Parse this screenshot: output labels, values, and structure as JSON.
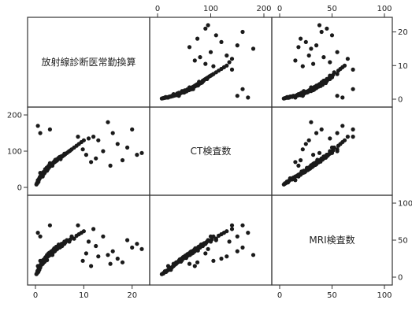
{
  "chart_data": {
    "type": "scatter",
    "subtype": "scatterplot-matrix",
    "variables": [
      {
        "id": "rad",
        "label": "放射線診断医常勤換算",
        "range": [
          0,
          22
        ],
        "ticks": [
          0,
          10,
          20
        ]
      },
      {
        "id": "ct",
        "label": "CT検査数",
        "range": [
          0,
          200
        ],
        "ticks": [
          0,
          100,
          200
        ]
      },
      {
        "id": "mri",
        "label": "MRI検査数",
        "range": [
          0,
          100
        ],
        "ticks": [
          0,
          50,
          100
        ]
      }
    ],
    "grid": false,
    "legend": "none",
    "point_color": "#1a1a1a",
    "observations": [
      {
        "rad": 0.5,
        "ct": 20,
        "mri": 15
      },
      {
        "rad": 1.2,
        "ct": 35,
        "mri": 20
      },
      {
        "rad": 2.0,
        "ct": 45,
        "mri": 25
      },
      {
        "rad": 0.8,
        "ct": 25,
        "mri": 10
      },
      {
        "rad": 3.5,
        "ct": 60,
        "mri": 30
      },
      {
        "rad": 1.5,
        "ct": 30,
        "mri": 18
      },
      {
        "rad": 4.0,
        "ct": 70,
        "mri": 35
      },
      {
        "rad": 2.5,
        "ct": 55,
        "mri": 28
      },
      {
        "rad": 0.3,
        "ct": 10,
        "mri": 5
      },
      {
        "rad": 5.0,
        "ct": 80,
        "mri": 40
      },
      {
        "rad": 1.0,
        "ct": 40,
        "mri": 22
      },
      {
        "rad": 6.0,
        "ct": 90,
        "mri": 45
      },
      {
        "rad": 2.2,
        "ct": 50,
        "mri": 26
      },
      {
        "rad": 3.0,
        "ct": 65,
        "mri": 32
      },
      {
        "rad": 0.6,
        "ct": 15,
        "mri": 8
      },
      {
        "rad": 1.8,
        "ct": 42,
        "mri": 24
      },
      {
        "rad": 4.5,
        "ct": 75,
        "mri": 38
      },
      {
        "rad": 7.0,
        "ct": 100,
        "mri": 48
      },
      {
        "rad": 2.8,
        "ct": 58,
        "mri": 30
      },
      {
        "rad": 1.3,
        "ct": 33,
        "mri": 17
      },
      {
        "rad": 3.2,
        "ct": 62,
        "mri": 34
      },
      {
        "rad": 0.9,
        "ct": 28,
        "mri": 14
      },
      {
        "rad": 5.5,
        "ct": 85,
        "mri": 42
      },
      {
        "rad": 2.1,
        "ct": 48,
        "mri": 27
      },
      {
        "rad": 8.0,
        "ct": 110,
        "mri": 52
      },
      {
        "rad": 1.7,
        "ct": 38,
        "mri": 20
      },
      {
        "rad": 3.8,
        "ct": 68,
        "mri": 36
      },
      {
        "rad": 0.4,
        "ct": 12,
        "mri": 6
      },
      {
        "rad": 2.6,
        "ct": 52,
        "mri": 29
      },
      {
        "rad": 4.2,
        "ct": 72,
        "mri": 37
      },
      {
        "rad": 1.1,
        "ct": 31,
        "mri": 16
      },
      {
        "rad": 6.5,
        "ct": 95,
        "mri": 50
      },
      {
        "rad": 3.6,
        "ct": 66,
        "mri": 33
      },
      {
        "rad": 0.7,
        "ct": 22,
        "mri": 12
      },
      {
        "rad": 2.4,
        "ct": 46,
        "mri": 23
      },
      {
        "rad": 1.9,
        "ct": 44,
        "mri": 21
      },
      {
        "rad": 5.2,
        "ct": 78,
        "mri": 41
      },
      {
        "rad": 9.0,
        "ct": 120,
        "mri": 58
      },
      {
        "rad": 2.9,
        "ct": 56,
        "mri": 31
      },
      {
        "rad": 1.4,
        "ct": 36,
        "mri": 19
      },
      {
        "rad": 4.8,
        "ct": 82,
        "mri": 44
      },
      {
        "rad": 3.3,
        "ct": 64,
        "mri": 35
      },
      {
        "rad": 0.2,
        "ct": 8,
        "mri": 4
      },
      {
        "rad": 2.3,
        "ct": 54,
        "mri": 26
      },
      {
        "rad": 7.5,
        "ct": 105,
        "mri": 55
      },
      {
        "rad": 1.6,
        "ct": 41,
        "mri": 23
      },
      {
        "rad": 3.9,
        "ct": 71,
        "mri": 39
      },
      {
        "rad": 0.5,
        "ct": 18,
        "mri": 9
      },
      {
        "rad": 4.1,
        "ct": 76,
        "mri": 36
      },
      {
        "rad": 2.7,
        "ct": 59,
        "mri": 32
      },
      {
        "rad": 1.0,
        "ct": 27,
        "mri": 13
      },
      {
        "rad": 5.8,
        "ct": 88,
        "mri": 46
      },
      {
        "rad": 3.1,
        "ct": 61,
        "mri": 30
      },
      {
        "rad": 0.8,
        "ct": 24,
        "mri": 11
      },
      {
        "rad": 10.0,
        "ct": 130,
        "mri": 62
      },
      {
        "rad": 2.0,
        "ct": 47,
        "mri": 25
      },
      {
        "rad": 6.2,
        "ct": 92,
        "mri": 47
      },
      {
        "rad": 1.2,
        "ct": 34,
        "mri": 18
      },
      {
        "rad": 4.4,
        "ct": 74,
        "mri": 38
      },
      {
        "rad": 3.4,
        "ct": 63,
        "mri": 34
      },
      {
        "rad": 0.6,
        "ct": 16,
        "mri": 7
      },
      {
        "rad": 2.5,
        "ct": 53,
        "mri": 28
      },
      {
        "rad": 1.5,
        "ct": 39,
        "mri": 21
      },
      {
        "rad": 7.2,
        "ct": 102,
        "mri": 51
      },
      {
        "rad": 5.0,
        "ct": 84,
        "mri": 43
      },
      {
        "rad": 3.7,
        "ct": 69,
        "mri": 37
      },
      {
        "rad": 1.8,
        "ct": 43,
        "mri": 22
      },
      {
        "rad": 0.3,
        "ct": 11,
        "mri": 5
      },
      {
        "rad": 2.2,
        "ct": 49,
        "mri": 27
      },
      {
        "rad": 4.6,
        "ct": 79,
        "mri": 40
      },
      {
        "rad": 12.0,
        "ct": 140,
        "mri": 65
      },
      {
        "rad": 1.1,
        "ct": 32,
        "mri": 17
      },
      {
        "rad": 3.0,
        "ct": 67,
        "mri": 33
      },
      {
        "rad": 2.8,
        "ct": 57,
        "mri": 29
      },
      {
        "rad": 0.9,
        "ct": 26,
        "mri": 13
      },
      {
        "rad": 5.4,
        "ct": 86,
        "mri": 45
      },
      {
        "rad": 1.7,
        "ct": 37,
        "mri": 20
      },
      {
        "rad": 8.5,
        "ct": 115,
        "mri": 56
      },
      {
        "rad": 3.5,
        "ct": 65,
        "mri": 34
      },
      {
        "rad": 0.4,
        "ct": 14,
        "mri": 8
      },
      {
        "rad": 2.6,
        "ct": 51,
        "mri": 28
      },
      {
        "rad": 4.0,
        "ct": 73,
        "mri": 39
      },
      {
        "rad": 1.3,
        "ct": 35,
        "mri": 18
      },
      {
        "rad": 6.8,
        "ct": 98,
        "mri": 49
      },
      {
        "rad": 2.1,
        "ct": 45,
        "mri": 24
      },
      {
        "rad": 0.7,
        "ct": 21,
        "mri": 10
      },
      {
        "rad": 3.8,
        "ct": 70,
        "mri": 36
      },
      {
        "rad": 1.9,
        "ct": 40,
        "mri": 21
      },
      {
        "rad": 5.6,
        "ct": 87,
        "mri": 44
      },
      {
        "rad": 2.4,
        "ct": 55,
        "mri": 30
      },
      {
        "rad": 9.5,
        "ct": 125,
        "mri": 60
      },
      {
        "rad": 1.6,
        "ct": 42,
        "mri": 23
      },
      {
        "rad": 4.3,
        "ct": 77,
        "mri": 41
      },
      {
        "rad": 0.5,
        "ct": 19,
        "mri": 9
      },
      {
        "rad": 3.2,
        "ct": 60,
        "mri": 31
      },
      {
        "rad": 2.0,
        "ct": 50,
        "mri": 26
      },
      {
        "rad": 1.0,
        "ct": 30,
        "mri": 15
      },
      {
        "rad": 6.0,
        "ct": 93,
        "mri": 48
      },
      {
        "rad": 2.9,
        "ct": 62,
        "mri": 33
      },
      {
        "rad": 0.8,
        "ct": 23,
        "mri": 12
      },
      {
        "rad": 20.0,
        "ct": 160,
        "mri": 40
      },
      {
        "rad": 15.0,
        "ct": 180,
        "mri": 30
      },
      {
        "rad": 17.0,
        "ct": 120,
        "mri": 25
      },
      {
        "rad": 21.0,
        "ct": 90,
        "mri": 45
      },
      {
        "rad": 14.0,
        "ct": 100,
        "mri": 55
      },
      {
        "rad": 18.0,
        "ct": 75,
        "mri": 20
      },
      {
        "rad": 16.0,
        "ct": 150,
        "mri": 35
      },
      {
        "rad": 19.0,
        "ct": 110,
        "mri": 50
      },
      {
        "rad": 13.0,
        "ct": 130,
        "mri": 28
      },
      {
        "rad": 22.0,
        "ct": 95,
        "mri": 38
      },
      {
        "rad": 12.5,
        "ct": 80,
        "mri": 42
      },
      {
        "rad": 15.5,
        "ct": 60,
        "mri": 18
      },
      {
        "rad": 0.5,
        "ct": 170,
        "mri": 60
      },
      {
        "rad": 1.0,
        "ct": 150,
        "mri": 55
      },
      {
        "rad": 3.0,
        "ct": 160,
        "mri": 70
      },
      {
        "rad": 11.0,
        "ct": 135,
        "mri": 48
      },
      {
        "rad": 10.5,
        "ct": 90,
        "mri": 32
      },
      {
        "rad": 9.8,
        "ct": 105,
        "mri": 22
      },
      {
        "rad": 11.5,
        "ct": 70,
        "mri": 15
      },
      {
        "rad": 8.8,
        "ct": 140,
        "mri": 70
      }
    ]
  }
}
